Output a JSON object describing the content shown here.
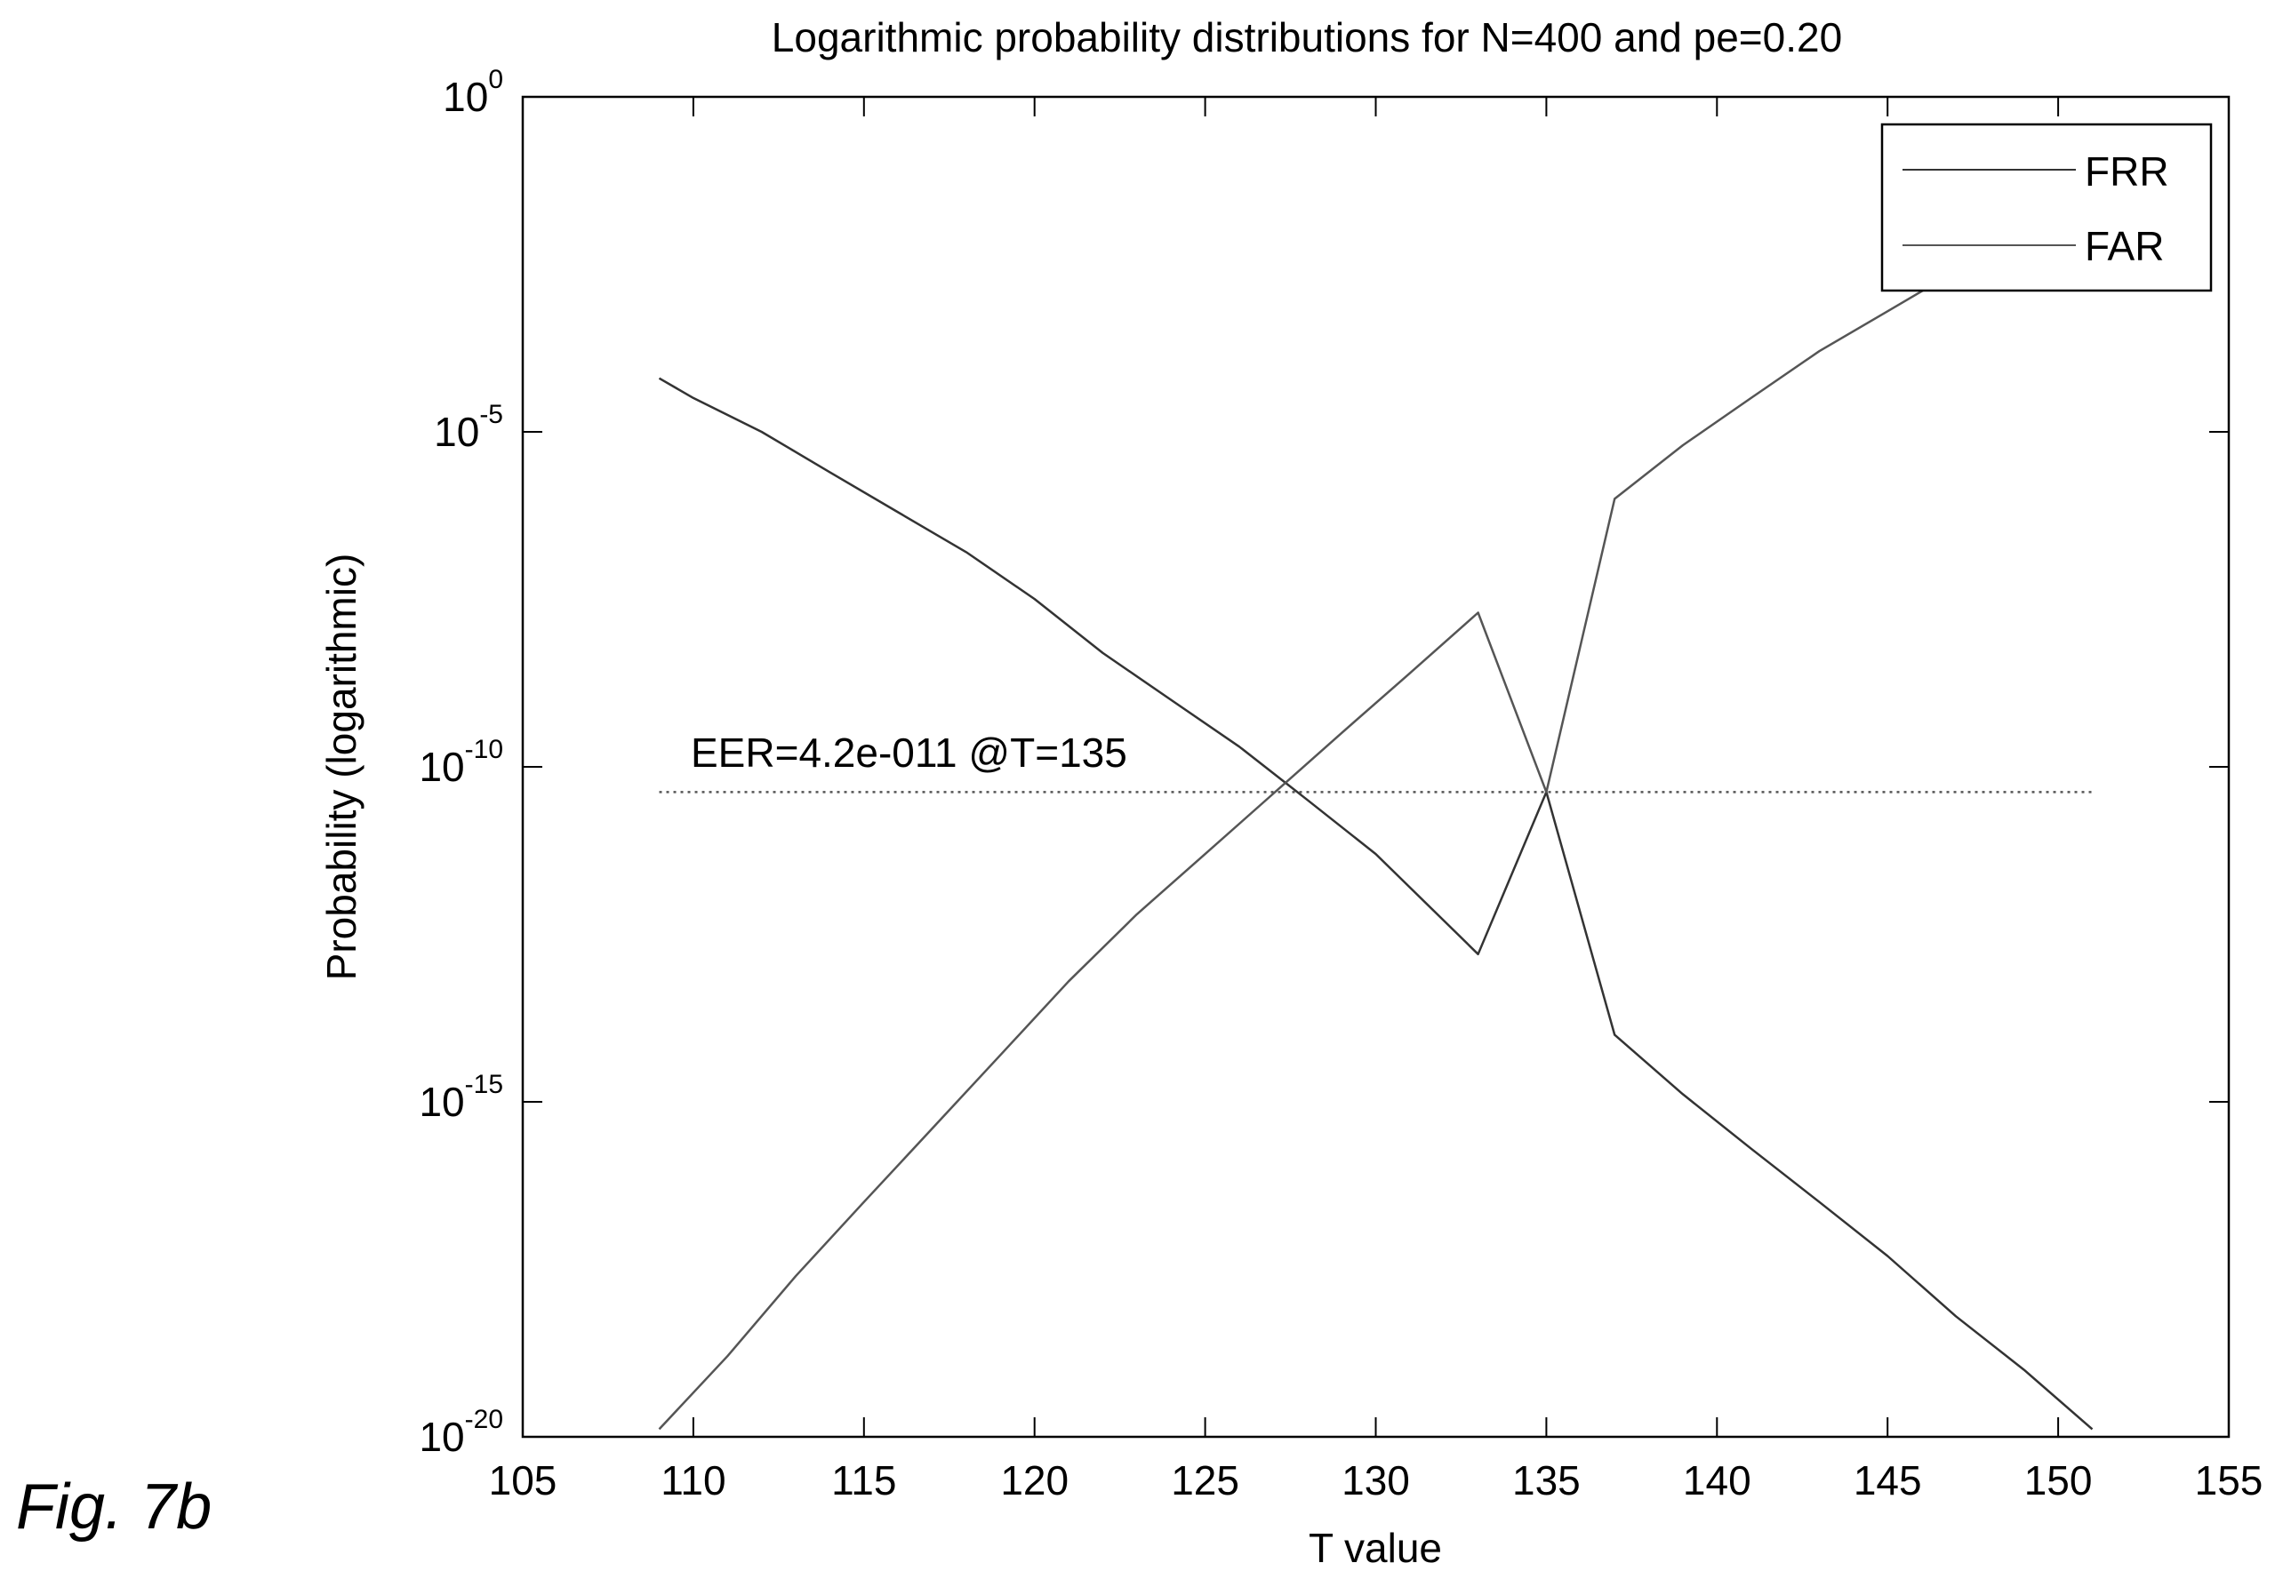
{
  "figure_label": "Fig. 7b",
  "chart_data": {
    "type": "line",
    "title": "Logarithmic probability distributions for N=400 and pe=0.20",
    "xlabel": "T value",
    "ylabel": "Probability (logarithmic)",
    "xlim": [
      105,
      155
    ],
    "ylim": [
      1e-20,
      1
    ],
    "yscale": "log",
    "x_ticks": [
      105,
      110,
      115,
      120,
      125,
      130,
      135,
      140,
      145,
      150,
      155
    ],
    "y_ticks": [
      {
        "value": 1e-20,
        "base": "10",
        "exp": "-20"
      },
      {
        "value": 1e-15,
        "base": "10",
        "exp": "-15"
      },
      {
        "value": 1e-10,
        "base": "10",
        "exp": "-10"
      },
      {
        "value": 1e-05,
        "base": "10",
        "exp": "-5"
      },
      {
        "value": 1,
        "base": "10",
        "exp": "0"
      }
    ],
    "grid": false,
    "legend": {
      "position": "top-right",
      "entries": [
        "FRR",
        "FAR"
      ]
    },
    "series": [
      {
        "name": "FRR",
        "color": "#333333",
        "x": [
          109,
          110,
          112,
          114,
          116,
          118,
          120,
          122,
          124,
          126,
          128,
          130,
          133,
          135,
          137,
          139,
          141,
          143,
          145,
          147,
          149,
          151
        ],
        "y": [
          6.3e-05,
          3.2e-05,
          1e-05,
          2.5e-06,
          6.3e-07,
          1.6e-07,
          3.2e-08,
          5e-09,
          1e-09,
          2e-10,
          3.2e-11,
          5e-12,
          1.6e-13,
          4.2e-11,
          1e-14,
          1.3e-15,
          2e-16,
          3.2e-17,
          5e-18,
          6.3e-19,
          1e-19,
          1.3e-20
        ]
      },
      {
        "name": "FAR",
        "color": "#555555",
        "x": [
          109,
          111,
          113,
          115,
          117,
          119,
          121,
          123,
          125,
          127,
          129,
          131,
          133,
          135,
          137,
          139,
          141,
          143,
          145,
          147,
          149,
          151
        ],
        "y": [
          1.3e-20,
          1.6e-19,
          2.5e-18,
          3.2e-17,
          4e-16,
          5e-15,
          6.3e-14,
          6.3e-13,
          5e-12,
          4e-11,
          3.2e-10,
          2.5e-09,
          2e-08,
          4.2e-11,
          1e-06,
          6.3e-06,
          3.2e-05,
          0.00016,
          0.00063,
          0.0025,
          0.0079,
          0.025
        ]
      }
    ],
    "reference_line": {
      "y": 4.2e-11,
      "x_range": [
        109,
        151
      ],
      "style": "dotted"
    },
    "annotations": [
      {
        "text": "EER=4.2e-011 @T=135",
        "x": 109,
        "y": 1.6e-10
      }
    ]
  }
}
